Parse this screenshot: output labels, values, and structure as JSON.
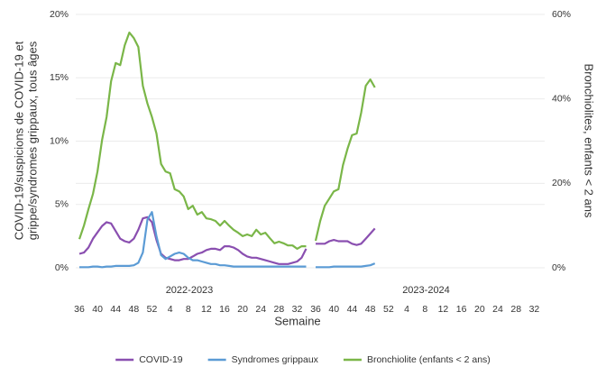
{
  "chart_data": {
    "type": "line",
    "ylabel": [
      "COVID-19/suspicions de COVID-19 et",
      "grippe/syndromes grippaux, tous âges"
    ],
    "y2label": "Bronchiolites, enfants < 2 ans",
    "xlabel": "Semaine",
    "ylim": [
      0,
      20
    ],
    "yticks": [
      {
        "value": 0,
        "label": "0%"
      },
      {
        "value": 5,
        "label": "5%"
      },
      {
        "value": 10,
        "label": "10%"
      },
      {
        "value": 15,
        "label": "15%"
      },
      {
        "value": 20,
        "label": "20%"
      }
    ],
    "y2lim": [
      0,
      60
    ],
    "y2ticks": [
      {
        "value": 0,
        "label": "0%"
      },
      {
        "value": 20,
        "label": "20%"
      },
      {
        "value": 40,
        "label": "40%"
      },
      {
        "value": 60,
        "label": "60%"
      }
    ],
    "xlim": [
      -1,
      49.5
    ],
    "xticks": [
      {
        "value": 0,
        "label": "36"
      },
      {
        "value": 4,
        "label": "40"
      },
      {
        "value": 8,
        "label": "44"
      },
      {
        "value": 12,
        "label": "48"
      },
      {
        "value": 16,
        "label": "52"
      },
      {
        "value": 20,
        "label": "4"
      },
      {
        "value": 24,
        "label": "8"
      },
      {
        "value": 28,
        "label": "12"
      },
      {
        "value": 32,
        "label": "16"
      },
      {
        "value": 36,
        "label": "20"
      },
      {
        "value": 40,
        "label": "24"
      },
      {
        "value": 44,
        "label": "28"
      },
      {
        "value": 48,
        "label": "32"
      }
    ],
    "grid": true,
    "panels": [
      {
        "label": "2022-2023",
        "x": [
          0,
          1,
          2,
          3,
          4,
          5,
          6,
          7,
          8,
          9,
          10,
          11,
          12,
          13,
          14,
          15,
          16,
          17,
          18,
          19,
          20,
          21,
          22,
          23,
          24,
          25,
          26,
          27,
          28,
          29,
          30,
          31,
          32,
          33,
          34,
          35,
          36,
          37,
          38,
          39,
          40,
          41,
          42,
          43,
          44,
          45,
          46,
          47,
          48,
          49,
          50
        ]
      },
      {
        "label": "2023-2024",
        "x": [
          0,
          1,
          2,
          3,
          4,
          5,
          6,
          7,
          8,
          9,
          10,
          11,
          12,
          13
        ]
      }
    ],
    "series": [
      {
        "name": "COVID-19",
        "color": "#8a4fb0",
        "axis": "y",
        "values": [
          [
            1.1,
            1.2,
            1.6,
            2.3,
            2.8,
            3.3,
            3.6,
            3.5,
            2.9,
            2.3,
            2.1,
            2.0,
            2.3,
            3.0,
            3.9,
            4.0,
            3.6,
            2.2,
            1.1,
            0.8,
            0.7,
            0.6,
            0.6,
            0.7,
            0.7,
            0.9,
            1.1,
            1.2,
            1.4,
            1.5,
            1.5,
            1.4,
            1.7,
            1.7,
            1.6,
            1.4,
            1.1,
            0.9,
            0.8,
            0.8,
            0.7,
            0.6,
            0.5,
            0.4,
            0.3,
            0.3,
            0.3,
            0.4,
            0.5,
            0.8,
            1.5
          ],
          [
            1.9,
            1.9,
            1.9,
            2.1,
            2.2,
            2.1,
            2.1,
            2.1,
            1.9,
            1.8,
            1.9,
            2.3,
            2.7,
            3.1
          ]
        ]
      },
      {
        "name": "Syndromes grippaux",
        "color": "#5b9bd5",
        "axis": "y",
        "values": [
          [
            0.05,
            0.05,
            0.05,
            0.1,
            0.1,
            0.05,
            0.1,
            0.1,
            0.15,
            0.15,
            0.15,
            0.15,
            0.2,
            0.4,
            1.2,
            3.8,
            4.4,
            2.5,
            1.0,
            0.7,
            0.9,
            1.1,
            1.2,
            1.1,
            0.8,
            0.6,
            0.6,
            0.5,
            0.4,
            0.3,
            0.3,
            0.2,
            0.2,
            0.15,
            0.1,
            0.1,
            0.1,
            0.1,
            0.1,
            0.1,
            0.1,
            0.1,
            0.1,
            0.1,
            0.1,
            0.1,
            0.1,
            0.1,
            0.1,
            0.1,
            0.1
          ],
          [
            0.05,
            0.05,
            0.05,
            0.05,
            0.1,
            0.1,
            0.1,
            0.1,
            0.1,
            0.1,
            0.1,
            0.15,
            0.2,
            0.35
          ]
        ]
      },
      {
        "name": "Bronchiolite (enfants < 2 ans)",
        "color": "#7ab648",
        "axis": "y2",
        "values": [
          [
            6.8,
            10,
            13.9,
            17.5,
            22.8,
            30.3,
            35.7,
            44.2,
            48.5,
            48,
            52.7,
            55.7,
            54.4,
            52.3,
            43.1,
            38.9,
            35.7,
            31.8,
            24.6,
            22.8,
            22.4,
            18.6,
            18.1,
            16.9,
            13.9,
            14.7,
            12.6,
            13.2,
            11.7,
            11.5,
            11.1,
            10,
            11.1,
            10,
            9,
            8.3,
            7.5,
            7.9,
            7.5,
            9,
            7.9,
            8.3,
            7.0,
            5.8,
            6.2,
            5.8,
            5.3,
            5.3,
            4.5,
            5.1,
            5.1
          ],
          [
            6.4,
            11.1,
            14.7,
            16.4,
            18.1,
            18.6,
            24.3,
            28.2,
            31.4,
            31.8,
            36.7,
            43.1,
            44.6,
            42.7
          ]
        ]
      }
    ]
  }
}
